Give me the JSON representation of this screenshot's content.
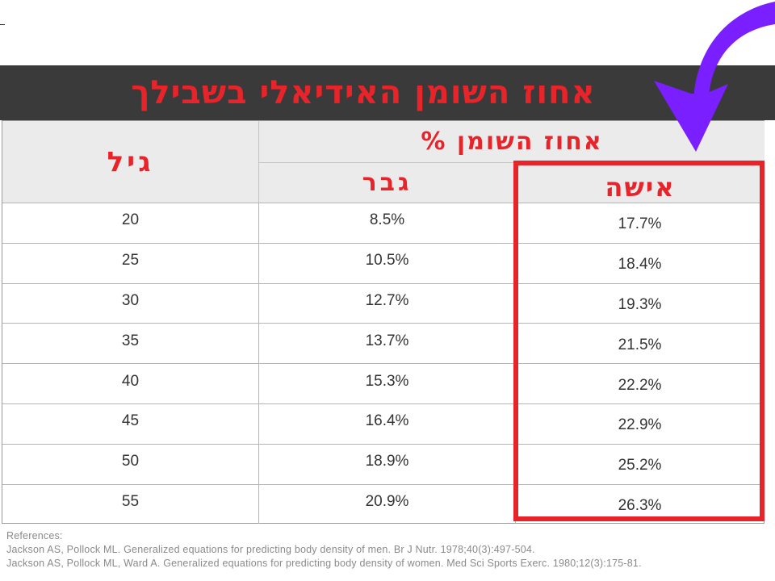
{
  "title": "אחוז השומן האידיאלי בשבילך",
  "headers": {
    "age": "גיל",
    "fat_percent": "אחוז השומן %",
    "man": "גבר",
    "woman": "אישה"
  },
  "rows": [
    {
      "age": "20",
      "man": "8.5%",
      "woman": "17.7%"
    },
    {
      "age": "25",
      "man": "10.5%",
      "woman": "18.4%"
    },
    {
      "age": "30",
      "man": "12.7%",
      "woman": "19.3%"
    },
    {
      "age": "35",
      "man": "13.7%",
      "woman": "21.5%"
    },
    {
      "age": "40",
      "man": "15.3%",
      "woman": "22.2%"
    },
    {
      "age": "45",
      "man": "16.4%",
      "woman": "22.9%"
    },
    {
      "age": "50",
      "man": "18.9%",
      "woman": "25.2%"
    },
    {
      "age": "55",
      "man": "20.9%",
      "woman": "26.3%"
    }
  ],
  "references": {
    "label": "References:",
    "items": [
      "Jackson AS, Pollock ML. Generalized equations for predicting body density of men. Br J Nutr. 1978;40(3):497-504.",
      "Jackson AS, Pollock ML, Ward A. Generalized equations for predicting body density of women. Med Sci Sports Exerc. 1980;12(3):175-81."
    ]
  },
  "colors": {
    "title_bar": "#3a3a3a",
    "accent_red": "#e8242b",
    "header_bg": "#ebebeb",
    "arrow_purple": "#7a1fff"
  },
  "icons": {
    "arrow": "curved-arrow-down-icon"
  }
}
